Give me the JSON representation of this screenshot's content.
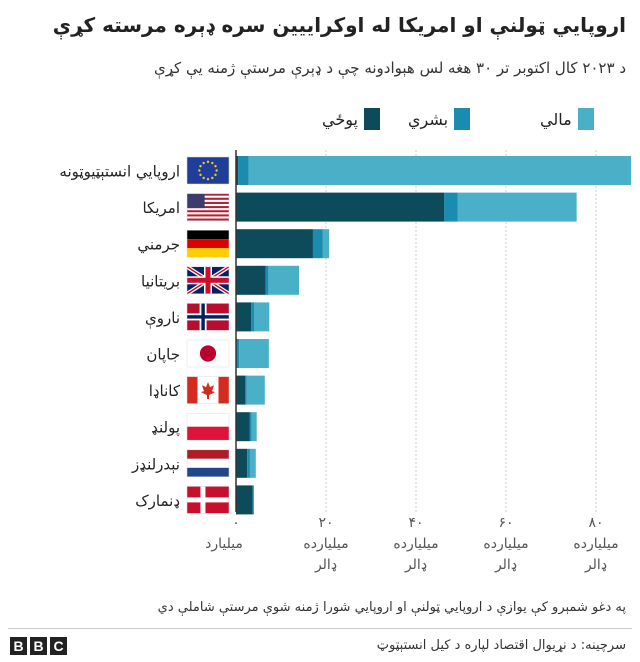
{
  "title": "اروپايي ټولنې او امريکا له اوکراييين سره ډېره مرسته کړې",
  "subtitle": "د ۲۰۲۳ کال اکتوبر تر ۳۰ هغه لس هېوادونه چې د ډېرې مرستې ژمنه يې کړې",
  "note": "په دغو شمېرو کې يوازې د اروپايي ټولنې او اروپايي شورا ژمنه شوې مرستې شاملې دي",
  "source": "سرچينه: د نړيوال اقتصاد لپاره د کيل انستېټوټ",
  "brand": [
    "B",
    "B",
    "C"
  ],
  "colors": {
    "military": "#0d4b5a",
    "humanitarian": "#1a8cb0",
    "financial": "#4ab0c8",
    "axis": "#333333",
    "grid": "#cccccc"
  },
  "chart_data": {
    "type": "bar",
    "orientation": "horizontal",
    "stacked": true,
    "title": "اروپايي ټولنې او امريکا له اوکراييين سره ډېره مرسته کړې",
    "categories": [
      "اروپايي انستېټيوټونه",
      "امريکا",
      "جرمني",
      "بريتانيا",
      "ناروې",
      "جاپان",
      "کاناډا",
      "پولنډ",
      "نېدرلنډز",
      "ډنمارک"
    ],
    "flags": [
      "eu",
      "us",
      "de",
      "gb",
      "no",
      "jp",
      "ca",
      "pl",
      "nl",
      "dk"
    ],
    "series": [
      {
        "key": "military",
        "name": "پوځي",
        "values": [
          0.5,
          46.3,
          17.1,
          6.6,
          3.4,
          0.1,
          2.0,
          3.0,
          2.5,
          3.7
        ]
      },
      {
        "key": "humanitarian",
        "name": "بشري",
        "values": [
          2.3,
          3.0,
          2.2,
          0.6,
          0.6,
          0.6,
          0.4,
          0.5,
          0.6,
          0.2
        ]
      },
      {
        "key": "financial",
        "name": "مالي",
        "values": [
          85.0,
          26.4,
          1.4,
          6.8,
          3.4,
          6.6,
          4.0,
          1.1,
          1.3,
          0.1
        ]
      }
    ],
    "xlim": [
      0,
      87
    ],
    "xticks": [
      0,
      20,
      40,
      60,
      80
    ],
    "xtick_labels": [
      "۰ ميليارد",
      "۲۰ ميلياردە ډالر",
      "۴۰ ميلياردە ډالر",
      "۶۰ ميلياردە ډالر",
      "۸۰ ميلياردە ډالر"
    ],
    "legend_position": "top-right"
  }
}
